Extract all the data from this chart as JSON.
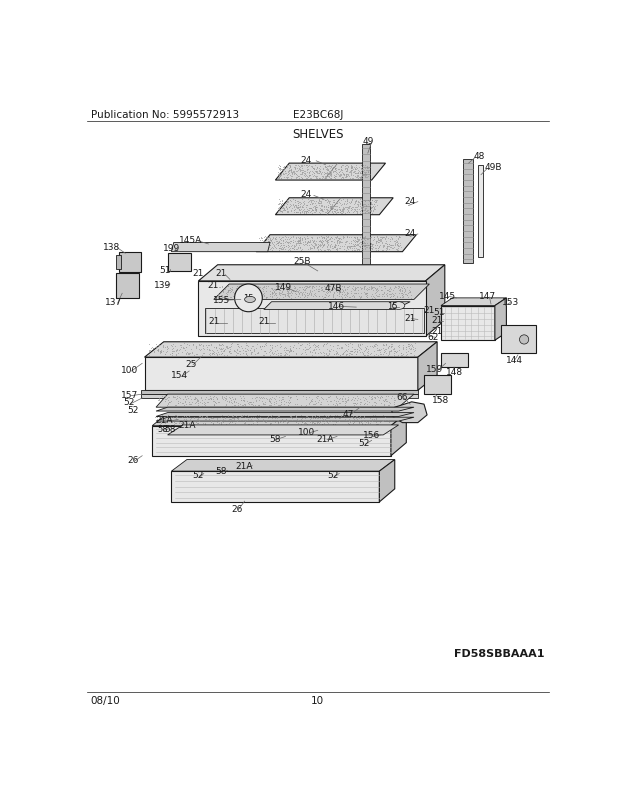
{
  "pub_no": "Publication No: 5995572913",
  "model": "E23BC68J",
  "section": "SHELVES",
  "date": "08/10",
  "page": "10",
  "diagram_id": "FD58SBBAAA1",
  "bg_color": "#ffffff",
  "text_color": "#1a1a1a",
  "line_color": "#000000",
  "header_fontsize": 7.5,
  "title_fontsize": 8.5,
  "footer_fontsize": 7.5,
  "diagram_id_fontsize": 8,
  "label_fontsize": 6.5
}
